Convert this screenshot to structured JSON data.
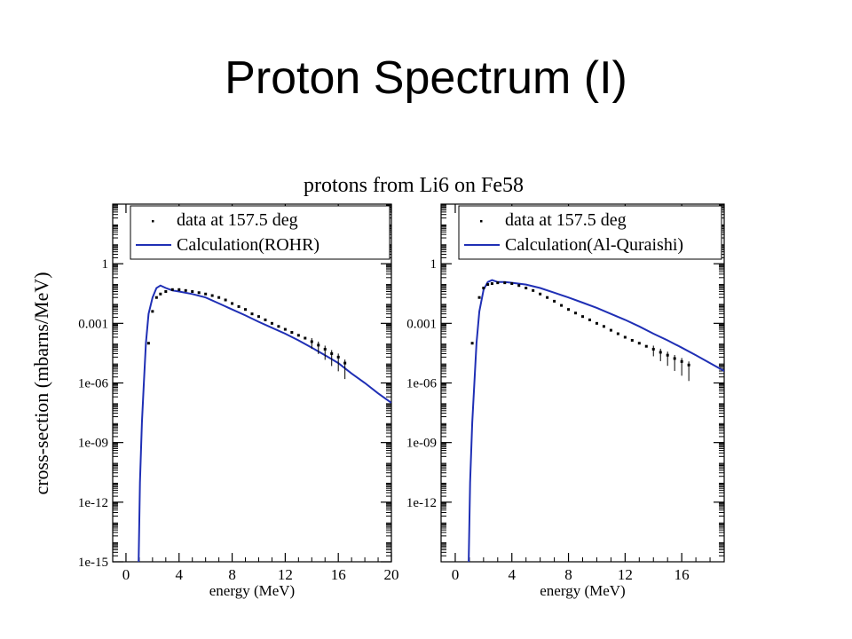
{
  "slide": {
    "title": "Proton Spectrum (I)"
  },
  "figure": {
    "title": "protons from Li6 on Fe58",
    "ylabel": "cross-section (mbarns/MeV)",
    "xlabel": "energy (MeV)"
  },
  "chart_data": [
    {
      "type": "line",
      "title": "protons from Li6 on Fe58",
      "xlabel": "energy (MeV)",
      "ylabel": "cross-section (mbarns/MeV)",
      "yscale": "log",
      "xlim": [
        -1,
        20
      ],
      "ylim": [
        1e-15,
        1000
      ],
      "xticks": [
        0,
        4,
        8,
        12,
        16,
        20
      ],
      "xtick_labels": [
        "0",
        "4",
        "8",
        "12",
        "16",
        "20"
      ],
      "yticks": [
        1e-15,
        1e-12,
        1e-09,
        1e-06,
        0.001,
        1
      ],
      "ytick_labels": [
        "1e-15",
        "1e-12",
        "1e-09",
        "1e-06",
        "0.001",
        "1"
      ],
      "legend_position": "top",
      "grid": false,
      "series": [
        {
          "name": "Calculation(ROHR)",
          "kind": "line",
          "color": "#1f2fb5",
          "x": [
            0.95,
            1.05,
            1.2,
            1.35,
            1.5,
            1.7,
            2.0,
            2.3,
            2.6,
            3.0,
            3.5,
            4.0,
            5.0,
            6.0,
            7.0,
            8.0,
            9.0,
            10.0,
            11.0,
            12.0,
            13.0,
            14.0,
            15.0,
            16.0,
            17.0,
            18.0,
            19.0,
            20.0
          ],
          "y": [
            1e-15,
            1e-11,
            1e-08,
            1e-06,
            0.0001,
            0.003,
            0.02,
            0.06,
            0.08,
            0.06,
            0.045,
            0.04,
            0.03,
            0.02,
            0.01,
            0.005,
            0.0025,
            0.0012,
            0.0006,
            0.0003,
            0.00014,
            6e-05,
            2.5e-05,
            1e-05,
            3e-06,
            1e-06,
            3e-07,
            1e-07
          ]
        },
        {
          "name": "data at 157.5 deg",
          "kind": "scatter",
          "color": "#000000",
          "x": [
            1.7,
            2.0,
            2.3,
            2.6,
            3.0,
            3.5,
            4.0,
            4.5,
            5.0,
            5.5,
            6.0,
            6.5,
            7.0,
            7.5,
            8.0,
            8.5,
            9.0,
            9.5,
            10.0,
            10.5,
            11.0,
            11.5,
            12.0,
            12.5,
            13.0,
            13.5,
            14.0,
            14.5,
            15.0,
            15.5,
            16.0,
            16.5
          ],
          "y": [
            0.0001,
            0.004,
            0.02,
            0.03,
            0.04,
            0.05,
            0.05,
            0.045,
            0.04,
            0.035,
            0.03,
            0.025,
            0.02,
            0.015,
            0.01,
            0.007,
            0.005,
            0.003,
            0.0022,
            0.0015,
            0.001,
            0.0007,
            0.0005,
            0.00035,
            0.00025,
            0.00018,
            0.00012,
            8e-05,
            5e-05,
            3e-05,
            2e-05,
            1e-05
          ]
        }
      ]
    },
    {
      "type": "line",
      "xlabel": "energy (MeV)",
      "yscale": "log",
      "xlim": [
        -1,
        19
      ],
      "ylim": [
        1e-15,
        1000
      ],
      "xticks": [
        0,
        4,
        8,
        12,
        16
      ],
      "xtick_labels": [
        "0",
        "4",
        "8",
        "12",
        "16"
      ],
      "yticks": [
        1e-12,
        1e-09,
        1e-06,
        0.001,
        1
      ],
      "ytick_labels": [
        "1e-12",
        "1e-09",
        "1e-06",
        "0.001",
        "1"
      ],
      "legend_position": "top",
      "grid": false,
      "series": [
        {
          "name": "Calculation(Al-Quraishi)",
          "kind": "line",
          "color": "#1f2fb5",
          "x": [
            0.95,
            1.05,
            1.2,
            1.35,
            1.5,
            1.7,
            2.0,
            2.3,
            2.6,
            3.0,
            3.5,
            4.0,
            5.0,
            6.0,
            7.0,
            8.0,
            9.0,
            10.0,
            11.0,
            12.0,
            13.0,
            14.0,
            15.0,
            16.0,
            17.0,
            18.0,
            19.0
          ],
          "y": [
            1e-15,
            1e-11,
            1e-08,
            1e-06,
            0.0001,
            0.004,
            0.05,
            0.12,
            0.15,
            0.12,
            0.12,
            0.11,
            0.09,
            0.06,
            0.035,
            0.02,
            0.011,
            0.006,
            0.003,
            0.0015,
            0.0007,
            0.0003,
            0.00014,
            6e-05,
            2.5e-05,
            1e-05,
            4e-06
          ]
        },
        {
          "name": "data at 157.5 deg",
          "kind": "scatter",
          "color": "#000000",
          "x": [
            1.2,
            1.7,
            2.0,
            2.3,
            2.6,
            3.0,
            3.5,
            4.0,
            4.5,
            5.0,
            5.5,
            6.0,
            6.5,
            7.0,
            7.5,
            8.0,
            8.5,
            9.0,
            9.5,
            10.0,
            10.5,
            11.0,
            11.5,
            12.0,
            12.5,
            13.0,
            13.5,
            14.0,
            14.5,
            15.0,
            15.5,
            16.0,
            16.5
          ],
          "y": [
            0.0001,
            0.02,
            0.06,
            0.09,
            0.1,
            0.11,
            0.11,
            0.1,
            0.08,
            0.06,
            0.045,
            0.03,
            0.02,
            0.013,
            0.008,
            0.005,
            0.0033,
            0.0022,
            0.0015,
            0.001,
            0.0007,
            0.00045,
            0.0003,
            0.0002,
            0.00014,
            0.0001,
            7e-05,
            5e-05,
            3.5e-05,
            2.5e-05,
            1.7e-05,
            1.2e-05,
            8e-06
          ]
        }
      ]
    }
  ]
}
